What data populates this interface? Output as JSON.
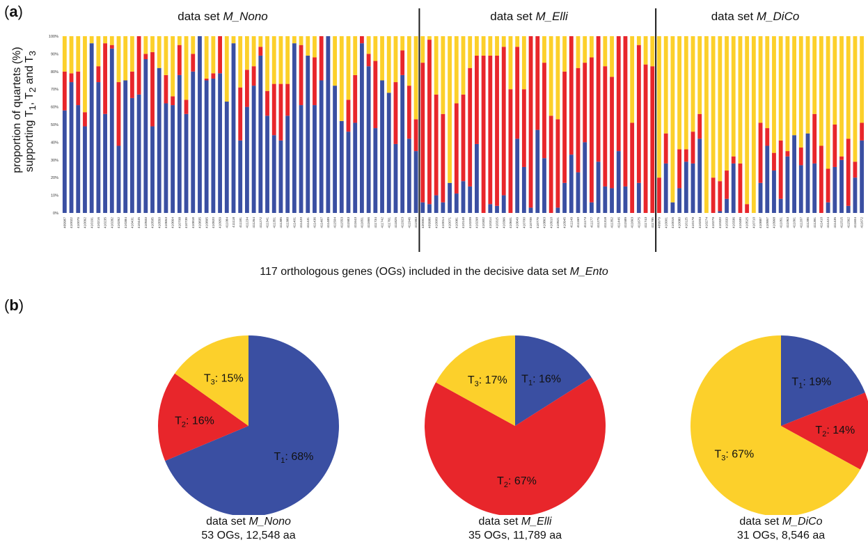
{
  "panel_labels": {
    "a": "a",
    "b": "b"
  },
  "colors": {
    "T1": "#3a4fa2",
    "T2": "#e8262b",
    "T3": "#fcd02b",
    "divider": "#1a1a1a"
  },
  "y_axis_label": {
    "line1": "proportion of quartets (%)",
    "line2_html": "supporting T<sub>1</sub>, T<sub>2</sub> and T<sub>3</sub>"
  },
  "x_caption": {
    "prefix": "117 orthologous genes (OGs) included in the decisive data set ",
    "italic": "M_Ento"
  },
  "set_titles": [
    {
      "prefix": "data set ",
      "name": "M_Nono"
    },
    {
      "prefix": "data set ",
      "name": "M_Elli"
    },
    {
      "prefix": "data set ",
      "name": "M_DiCo"
    }
  ],
  "chart_data": [
    {
      "type": "bar",
      "stacked": true,
      "ylim": [
        0,
        100
      ],
      "yticks": [
        "0%",
        "10%",
        "20%",
        "30%",
        "40%",
        "50%",
        "60%",
        "70%",
        "80%",
        "90%",
        "100%"
      ],
      "series_names": [
        "T1",
        "T2",
        "T3"
      ],
      "groups": [
        {
          "name": "M_Nono",
          "categories": [
            "409987",
            "410022",
            "410079",
            "410092",
            "410191",
            "410216",
            "410235",
            "410282",
            "410292",
            "410384",
            "410431",
            "410445",
            "410503",
            "410505",
            "410550",
            "410653",
            "410664",
            "410708",
            "410739",
            "410818",
            "410835",
            "410895",
            "410920",
            "410959",
            "411084",
            "411118",
            "411181",
            "411234",
            "411264",
            "411272",
            "411341",
            "411351",
            "411385",
            "411388",
            "411401",
            "411420",
            "411431",
            "411436",
            "411467",
            "411489",
            "411504",
            "411553",
            "411583",
            "411643",
            "411651",
            "411666",
            "411734",
            "411742",
            "411761",
            "411825",
            "411923",
            "411946",
            "411983"
          ],
          "T1": [
            58,
            74,
            61,
            49,
            96,
            74,
            56,
            93,
            38,
            75,
            65,
            67,
            87,
            49,
            82,
            62,
            61,
            78,
            56,
            80,
            100,
            75,
            76,
            79,
            63,
            96,
            41,
            60,
            72,
            89,
            55,
            44,
            41,
            55,
            96,
            61,
            89,
            61,
            75,
            100,
            72,
            52,
            46,
            51,
            96,
            83,
            48,
            75,
            68,
            39,
            78,
            42,
            35
          ],
          "T2": [
            22,
            5,
            19,
            8,
            0,
            9,
            40,
            2,
            36,
            0,
            15,
            33,
            3,
            42,
            0,
            16,
            5,
            17,
            8,
            10,
            0,
            1,
            3,
            21,
            0,
            0,
            30,
            21,
            11,
            5,
            14,
            29,
            32,
            18,
            0,
            34,
            0,
            27,
            25,
            0,
            0,
            0,
            18,
            27,
            4,
            7,
            38,
            0,
            0,
            35,
            14,
            30,
            18
          ]
        },
        {
          "name": "M_Elli",
          "categories": [
            "420003",
            "409986",
            "410009",
            "410014",
            "410071",
            "410081",
            "410148",
            "410209",
            "410298",
            "410302",
            "410314",
            "410315",
            "410366",
            "410601",
            "410649",
            "410700",
            "410709",
            "410779",
            "410863",
            "410910",
            "410921",
            "410945",
            "411149",
            "411160",
            "411173",
            "411177",
            "411275",
            "411318",
            "411352",
            "411446",
            "411589",
            "411663",
            "411675",
            "411743",
            "411795"
          ],
          "T1": [
            6,
            5,
            10,
            6,
            17,
            11,
            18,
            15,
            39,
            0,
            5,
            4,
            10,
            0,
            42,
            26,
            3,
            47,
            31,
            0,
            3,
            17,
            33,
            23,
            40,
            6,
            29,
            15,
            14,
            35,
            15,
            0,
            17,
            0,
            0
          ],
          "T2": [
            79,
            93,
            57,
            50,
            0,
            51,
            49,
            67,
            50,
            89,
            84,
            85,
            84,
            70,
            52,
            44,
            97,
            53,
            54,
            55,
            50,
            63,
            67,
            59,
            45,
            82,
            71,
            68,
            63,
            65,
            85,
            51,
            78,
            84,
            83
          ]
        },
        {
          "name": "M_DiCo",
          "categories": [
            "409979",
            "410001",
            "410016",
            "410080",
            "410125",
            "410178",
            "410203",
            "410274",
            "410279",
            "410320",
            "410333",
            "410336",
            "410489",
            "410525",
            "410710",
            "410887",
            "410957",
            "410968",
            "411051",
            "411063",
            "411091",
            "411207",
            "411286",
            "411391",
            "411410",
            "411424",
            "411435",
            "411515",
            "411562",
            "411604",
            "411672"
          ],
          "T1": [
            0,
            28,
            6,
            14,
            29,
            28,
            42,
            0,
            0,
            1,
            8,
            28,
            0,
            0,
            0,
            17,
            38,
            24,
            8,
            32,
            44,
            27,
            45,
            28,
            0,
            6,
            26,
            30,
            4,
            20,
            41
          ],
          "T2": [
            20,
            17,
            0,
            22,
            7,
            18,
            14,
            0,
            20,
            17,
            16,
            4,
            28,
            5,
            0,
            34,
            10,
            10,
            33,
            3,
            0,
            10,
            0,
            28,
            38,
            19,
            24,
            2,
            38,
            9,
            10
          ]
        }
      ]
    },
    {
      "type": "pie",
      "title": "data set M_Nono",
      "caption_lines": [
        "53 OGs, 12,548 aa"
      ],
      "slices": [
        {
          "name": "T1",
          "value": 68,
          "label": "68%"
        },
        {
          "name": "T2",
          "value": 16,
          "label": "16%"
        },
        {
          "name": "T3",
          "value": 15,
          "label": "15%"
        }
      ]
    },
    {
      "type": "pie",
      "title": "data set M_Elli",
      "caption_lines": [
        "35 OGs, 11,789 aa"
      ],
      "slices": [
        {
          "name": "T1",
          "value": 16,
          "label": "16%"
        },
        {
          "name": "T2",
          "value": 67,
          "label": "67%"
        },
        {
          "name": "T3",
          "value": 17,
          "label": "17%"
        }
      ]
    },
    {
      "type": "pie",
      "title": "data set M_DiCo",
      "caption_lines": [
        "31 OGs, 8,546 aa"
      ],
      "slices": [
        {
          "name": "T1",
          "value": 19,
          "label": "19%"
        },
        {
          "name": "T2",
          "value": 14,
          "label": "14%"
        },
        {
          "name": "T3",
          "value": 67,
          "label": "67%"
        }
      ]
    }
  ],
  "pie_captions": [
    {
      "prefix": "data set ",
      "name": "M_Nono",
      "line2": "53 OGs, 12,548 aa"
    },
    {
      "prefix": "data set ",
      "name": "M_Elli",
      "line2": "35 OGs, 11,789 aa"
    },
    {
      "prefix": "data set ",
      "name": "M_DiCo",
      "line2": "31 OGs, 8,546 aa"
    }
  ]
}
